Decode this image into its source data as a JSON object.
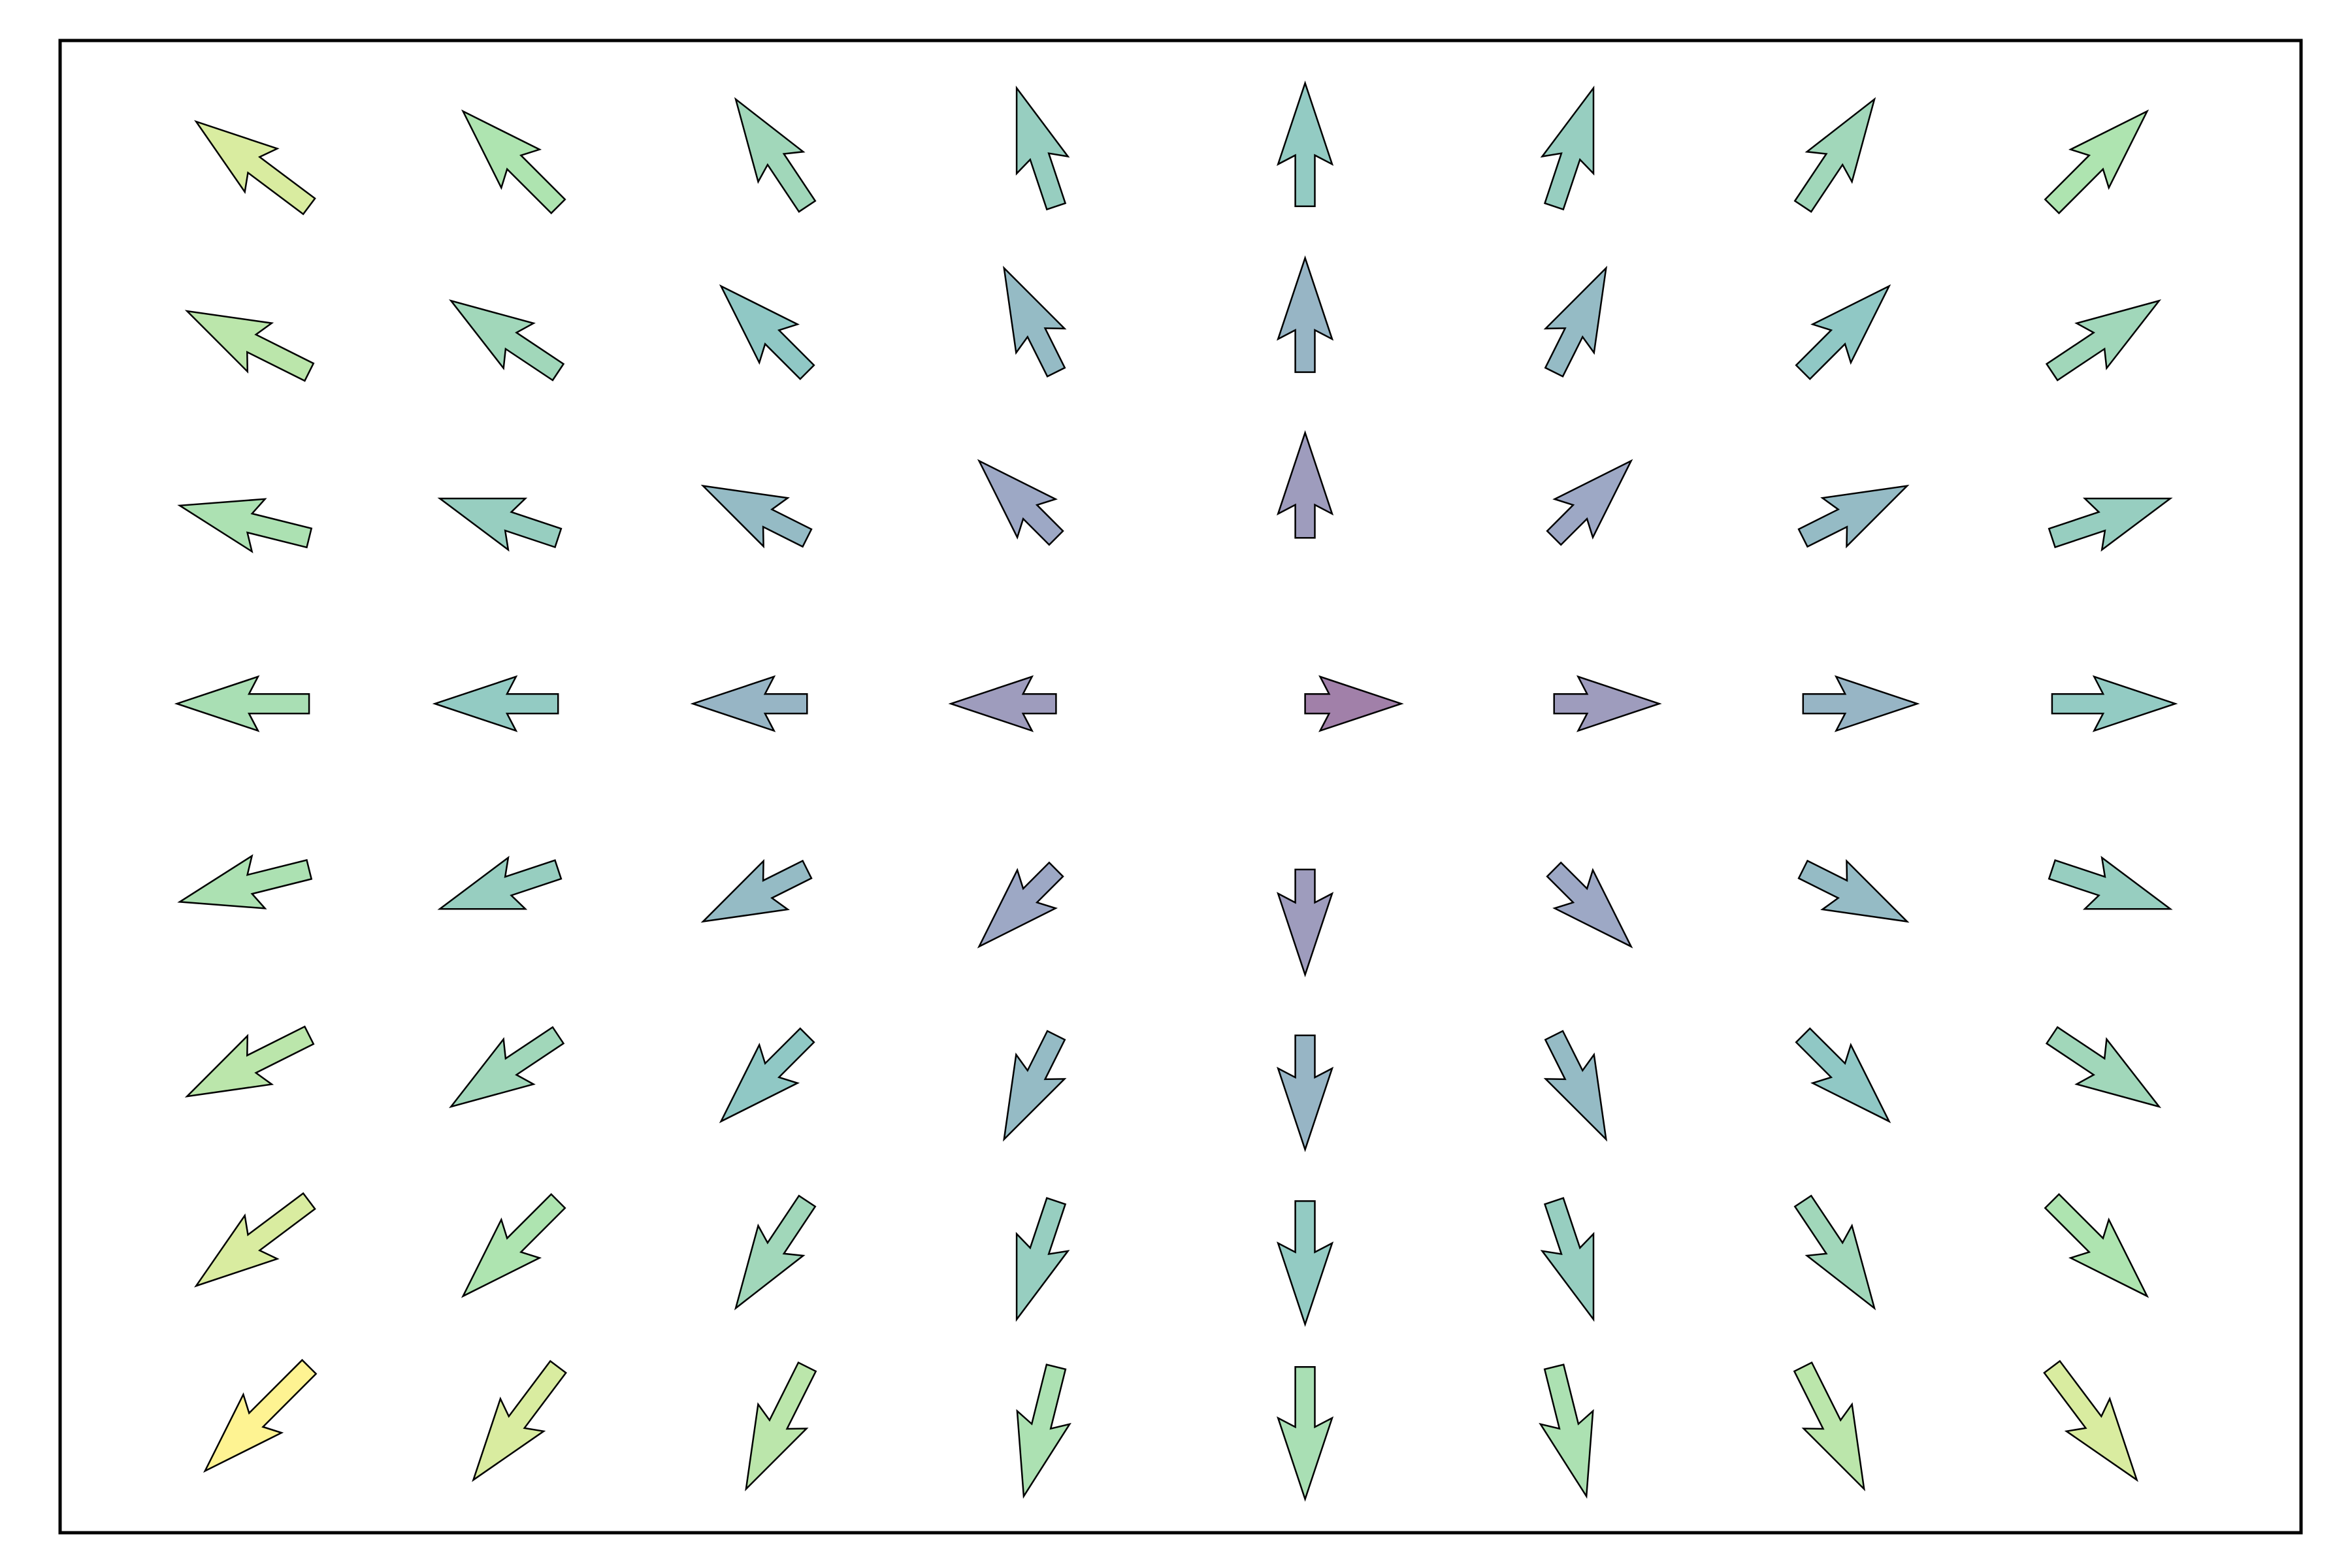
{
  "chart_data": {
    "type": "quiver",
    "x": [
      -4,
      -3,
      -2,
      -1,
      0,
      1,
      2,
      3
    ],
    "y": [
      3,
      2,
      1,
      0,
      -1,
      -2,
      -3,
      -4
    ],
    "u": [
      [
        -4,
        -3,
        -2,
        -1,
        0,
        1,
        2,
        3
      ],
      [
        -4,
        -3,
        -2,
        -1,
        0,
        1,
        2,
        3
      ],
      [
        -4,
        -3,
        -2,
        -1,
        0,
        1,
        2,
        3
      ],
      [
        -4,
        -3,
        -2,
        -1,
        0,
        1,
        2,
        3
      ],
      [
        -4,
        -3,
        -2,
        -1,
        0,
        1,
        2,
        3
      ],
      [
        -4,
        -3,
        -2,
        -1,
        0,
        1,
        2,
        3
      ],
      [
        -4,
        -3,
        -2,
        -1,
        0,
        1,
        2,
        3
      ],
      [
        -4,
        -3,
        -2,
        -1,
        0,
        1,
        2,
        3
      ]
    ],
    "v": [
      [
        3,
        3,
        3,
        3,
        3,
        3,
        3,
        3
      ],
      [
        2,
        2,
        2,
        2,
        2,
        2,
        2,
        2
      ],
      [
        1,
        1,
        1,
        1,
        1,
        1,
        1,
        1
      ],
      [
        0,
        0,
        0,
        0,
        0,
        0,
        0,
        0
      ],
      [
        -1,
        -1,
        -1,
        -1,
        -1,
        -1,
        -1,
        -1
      ],
      [
        -2,
        -2,
        -2,
        -2,
        -2,
        -2,
        -2,
        -2
      ],
      [
        -3,
        -3,
        -3,
        -3,
        -3,
        -3,
        -3,
        -3
      ],
      [
        -4,
        -4,
        -4,
        -4,
        -4,
        -4,
        -4,
        -4
      ]
    ],
    "xlim": [
      -5,
      4
    ],
    "ylim": [
      -5,
      4
    ],
    "colormap": [
      "#440154",
      "#3b528b",
      "#21918c",
      "#5ec962",
      "#fde725"
    ],
    "alpha": 0.5
  }
}
